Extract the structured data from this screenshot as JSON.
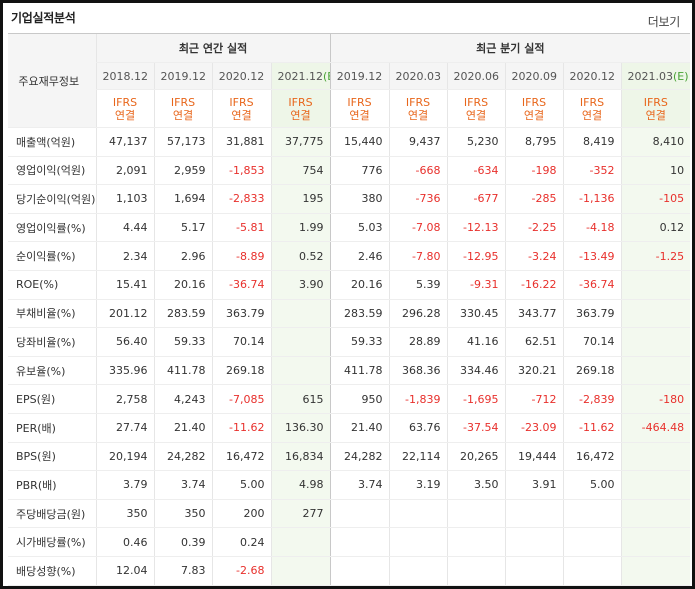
{
  "section_title": "기업실적분석",
  "more_label": "더보기",
  "header": {
    "row_label": "주요재무정보",
    "annual_group": "최근 연간 실적",
    "quarter_group": "최근 분기 실적",
    "periods": [
      {
        "label": "2018.12",
        "estimate": false
      },
      {
        "label": "2019.12",
        "estimate": false
      },
      {
        "label": "2020.12",
        "estimate": false
      },
      {
        "label": "2021.12",
        "mark": "(E)",
        "estimate": true
      },
      {
        "label": "2019.12",
        "estimate": false
      },
      {
        "label": "2020.03",
        "estimate": false
      },
      {
        "label": "2020.06",
        "estimate": false
      },
      {
        "label": "2020.09",
        "estimate": false
      },
      {
        "label": "2020.12",
        "estimate": false
      },
      {
        "label": "2021.03",
        "mark": "(E)",
        "estimate": true
      }
    ],
    "ifrs_top": "IFRS",
    "ifrs_bottom": "연결"
  },
  "rows": [
    {
      "label": "매출액(억원)",
      "group_start": true,
      "values": [
        "47,137",
        "57,173",
        "31,881",
        "37,775",
        "15,440",
        "9,437",
        "5,230",
        "8,795",
        "8,419",
        "8,410"
      ]
    },
    {
      "label": "영업이익(억원)",
      "values": [
        "2,091",
        "2,959",
        "-1,853",
        "754",
        "776",
        "-668",
        "-634",
        "-198",
        "-352",
        "10"
      ]
    },
    {
      "label": "당기순이익(억원)",
      "values": [
        "1,103",
        "1,694",
        "-2,833",
        "195",
        "380",
        "-736",
        "-677",
        "-285",
        "-1,136",
        "-105"
      ]
    },
    {
      "label": "영업이익률(%)",
      "group_start": true,
      "values": [
        "4.44",
        "5.17",
        "-5.81",
        "1.99",
        "5.03",
        "-7.08",
        "-12.13",
        "-2.25",
        "-4.18",
        "0.12"
      ]
    },
    {
      "label": "순이익률(%)",
      "values": [
        "2.34",
        "2.96",
        "-8.89",
        "0.52",
        "2.46",
        "-7.80",
        "-12.95",
        "-3.24",
        "-13.49",
        "-1.25"
      ]
    },
    {
      "label": "ROE(%)",
      "values": [
        "15.41",
        "20.16",
        "-36.74",
        "3.90",
        "20.16",
        "5.39",
        "-9.31",
        "-16.22",
        "-36.74",
        ""
      ]
    },
    {
      "label": "부채비율(%)",
      "group_start": true,
      "values": [
        "201.12",
        "283.59",
        "363.79",
        "",
        "283.59",
        "296.28",
        "330.45",
        "343.77",
        "363.79",
        ""
      ]
    },
    {
      "label": "당좌비율(%)",
      "values": [
        "56.40",
        "59.33",
        "70.14",
        "",
        "59.33",
        "28.89",
        "41.16",
        "62.51",
        "70.14",
        ""
      ]
    },
    {
      "label": "유보율(%)",
      "values": [
        "335.96",
        "411.78",
        "269.18",
        "",
        "411.78",
        "368.36",
        "334.46",
        "320.21",
        "269.18",
        ""
      ]
    },
    {
      "label": "EPS(원)",
      "group_start": true,
      "values": [
        "2,758",
        "4,243",
        "-7,085",
        "615",
        "950",
        "-1,839",
        "-1,695",
        "-712",
        "-2,839",
        "-180"
      ]
    },
    {
      "label": "PER(배)",
      "values": [
        "27.74",
        "21.40",
        "-11.62",
        "136.30",
        "21.40",
        "63.76",
        "-37.54",
        "-23.09",
        "-11.62",
        "-464.48"
      ]
    },
    {
      "label": "BPS(원)",
      "values": [
        "20,194",
        "24,282",
        "16,472",
        "16,834",
        "24,282",
        "22,114",
        "20,265",
        "19,444",
        "16,472",
        ""
      ]
    },
    {
      "label": "PBR(배)",
      "values": [
        "3.79",
        "3.74",
        "5.00",
        "4.98",
        "3.74",
        "3.19",
        "3.50",
        "3.91",
        "5.00",
        ""
      ]
    },
    {
      "label": "주당배당금(원)",
      "group_start": true,
      "values": [
        "350",
        "350",
        "200",
        "277",
        "",
        "",
        "",
        "",
        "",
        ""
      ]
    },
    {
      "label": "시가배당률(%)",
      "values": [
        "0.46",
        "0.39",
        "0.24",
        "",
        "",
        "",
        "",
        "",
        "",
        ""
      ]
    },
    {
      "label": "배당성향(%)",
      "values": [
        "12.04",
        "7.83",
        "-2.68",
        "",
        "",
        "",
        "",
        "",
        "",
        ""
      ]
    }
  ],
  "colors": {
    "negative": "#e8302c",
    "ifrs": "#e8661b",
    "estimate_mark": "#47a234",
    "estimate_bg": "#f3f9ef"
  }
}
